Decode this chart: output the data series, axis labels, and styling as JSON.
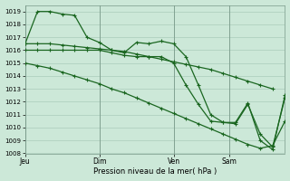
{
  "background_color": "#cce8d8",
  "grid_color": "#aaccbb",
  "line_color": "#1a6620",
  "xlabel": "Pression niveau de la mer( hPa )",
  "ylim": [
    1008,
    1019.5
  ],
  "ytick_vals": [
    1008,
    1009,
    1010,
    1011,
    1012,
    1013,
    1014,
    1015,
    1016,
    1017,
    1018,
    1019
  ],
  "xtick_labels": [
    "Jeu",
    "Dim",
    "Ven",
    "Sam"
  ],
  "xtick_positions": [
    0,
    24,
    48,
    66
  ],
  "vline_positions": [
    0,
    24,
    48,
    66
  ],
  "line1_x": [
    0,
    4,
    8,
    12,
    16,
    20,
    24,
    28,
    32,
    36,
    40,
    44,
    48,
    52,
    56,
    60,
    64,
    68,
    72,
    76,
    80
  ],
  "line1_y": [
    1016.5,
    1016.5,
    1016.5,
    1016.4,
    1016.3,
    1016.2,
    1016.1,
    1016.0,
    1015.9,
    1015.7,
    1015.5,
    1015.3,
    1015.1,
    1014.9,
    1014.7,
    1014.5,
    1014.2,
    1013.9,
    1013.6,
    1013.3,
    1013.0
  ],
  "line2_x": [
    0,
    4,
    8,
    12,
    16,
    20,
    24,
    28,
    32,
    36,
    40,
    44,
    48,
    52,
    56,
    60,
    64,
    68,
    72,
    76,
    80,
    84
  ],
  "line2_y": [
    1015.0,
    1014.8,
    1014.6,
    1014.3,
    1014.0,
    1013.7,
    1013.4,
    1013.0,
    1012.7,
    1012.3,
    1011.9,
    1011.5,
    1011.1,
    1010.7,
    1010.3,
    1009.9,
    1009.5,
    1009.1,
    1008.7,
    1008.4,
    1008.6,
    1010.5
  ],
  "line3_x": [
    0,
    4,
    8,
    12,
    16,
    20,
    24,
    28,
    32,
    36,
    40,
    44,
    48,
    52,
    56,
    60,
    64,
    68,
    72,
    76,
    80,
    84
  ],
  "line3_y": [
    1016.5,
    1019.0,
    1019.0,
    1018.8,
    1018.7,
    1017.0,
    1016.6,
    1016.0,
    1015.8,
    1016.6,
    1016.5,
    1016.7,
    1016.5,
    1015.5,
    1013.3,
    1011.0,
    1010.4,
    1010.4,
    1011.9,
    1009.0,
    1008.3,
    1012.5
  ],
  "line4_x": [
    0,
    4,
    8,
    12,
    16,
    20,
    24,
    28,
    32,
    36,
    40,
    44,
    48,
    52,
    56,
    60,
    64,
    68,
    72,
    76,
    80,
    84
  ],
  "line4_y": [
    1016.0,
    1016.0,
    1016.0,
    1016.0,
    1016.0,
    1016.0,
    1016.0,
    1015.8,
    1015.6,
    1015.5,
    1015.5,
    1015.5,
    1015.0,
    1013.3,
    1011.8,
    1010.5,
    1010.4,
    1010.3,
    1011.8,
    1009.5,
    1008.5,
    1012.3
  ]
}
